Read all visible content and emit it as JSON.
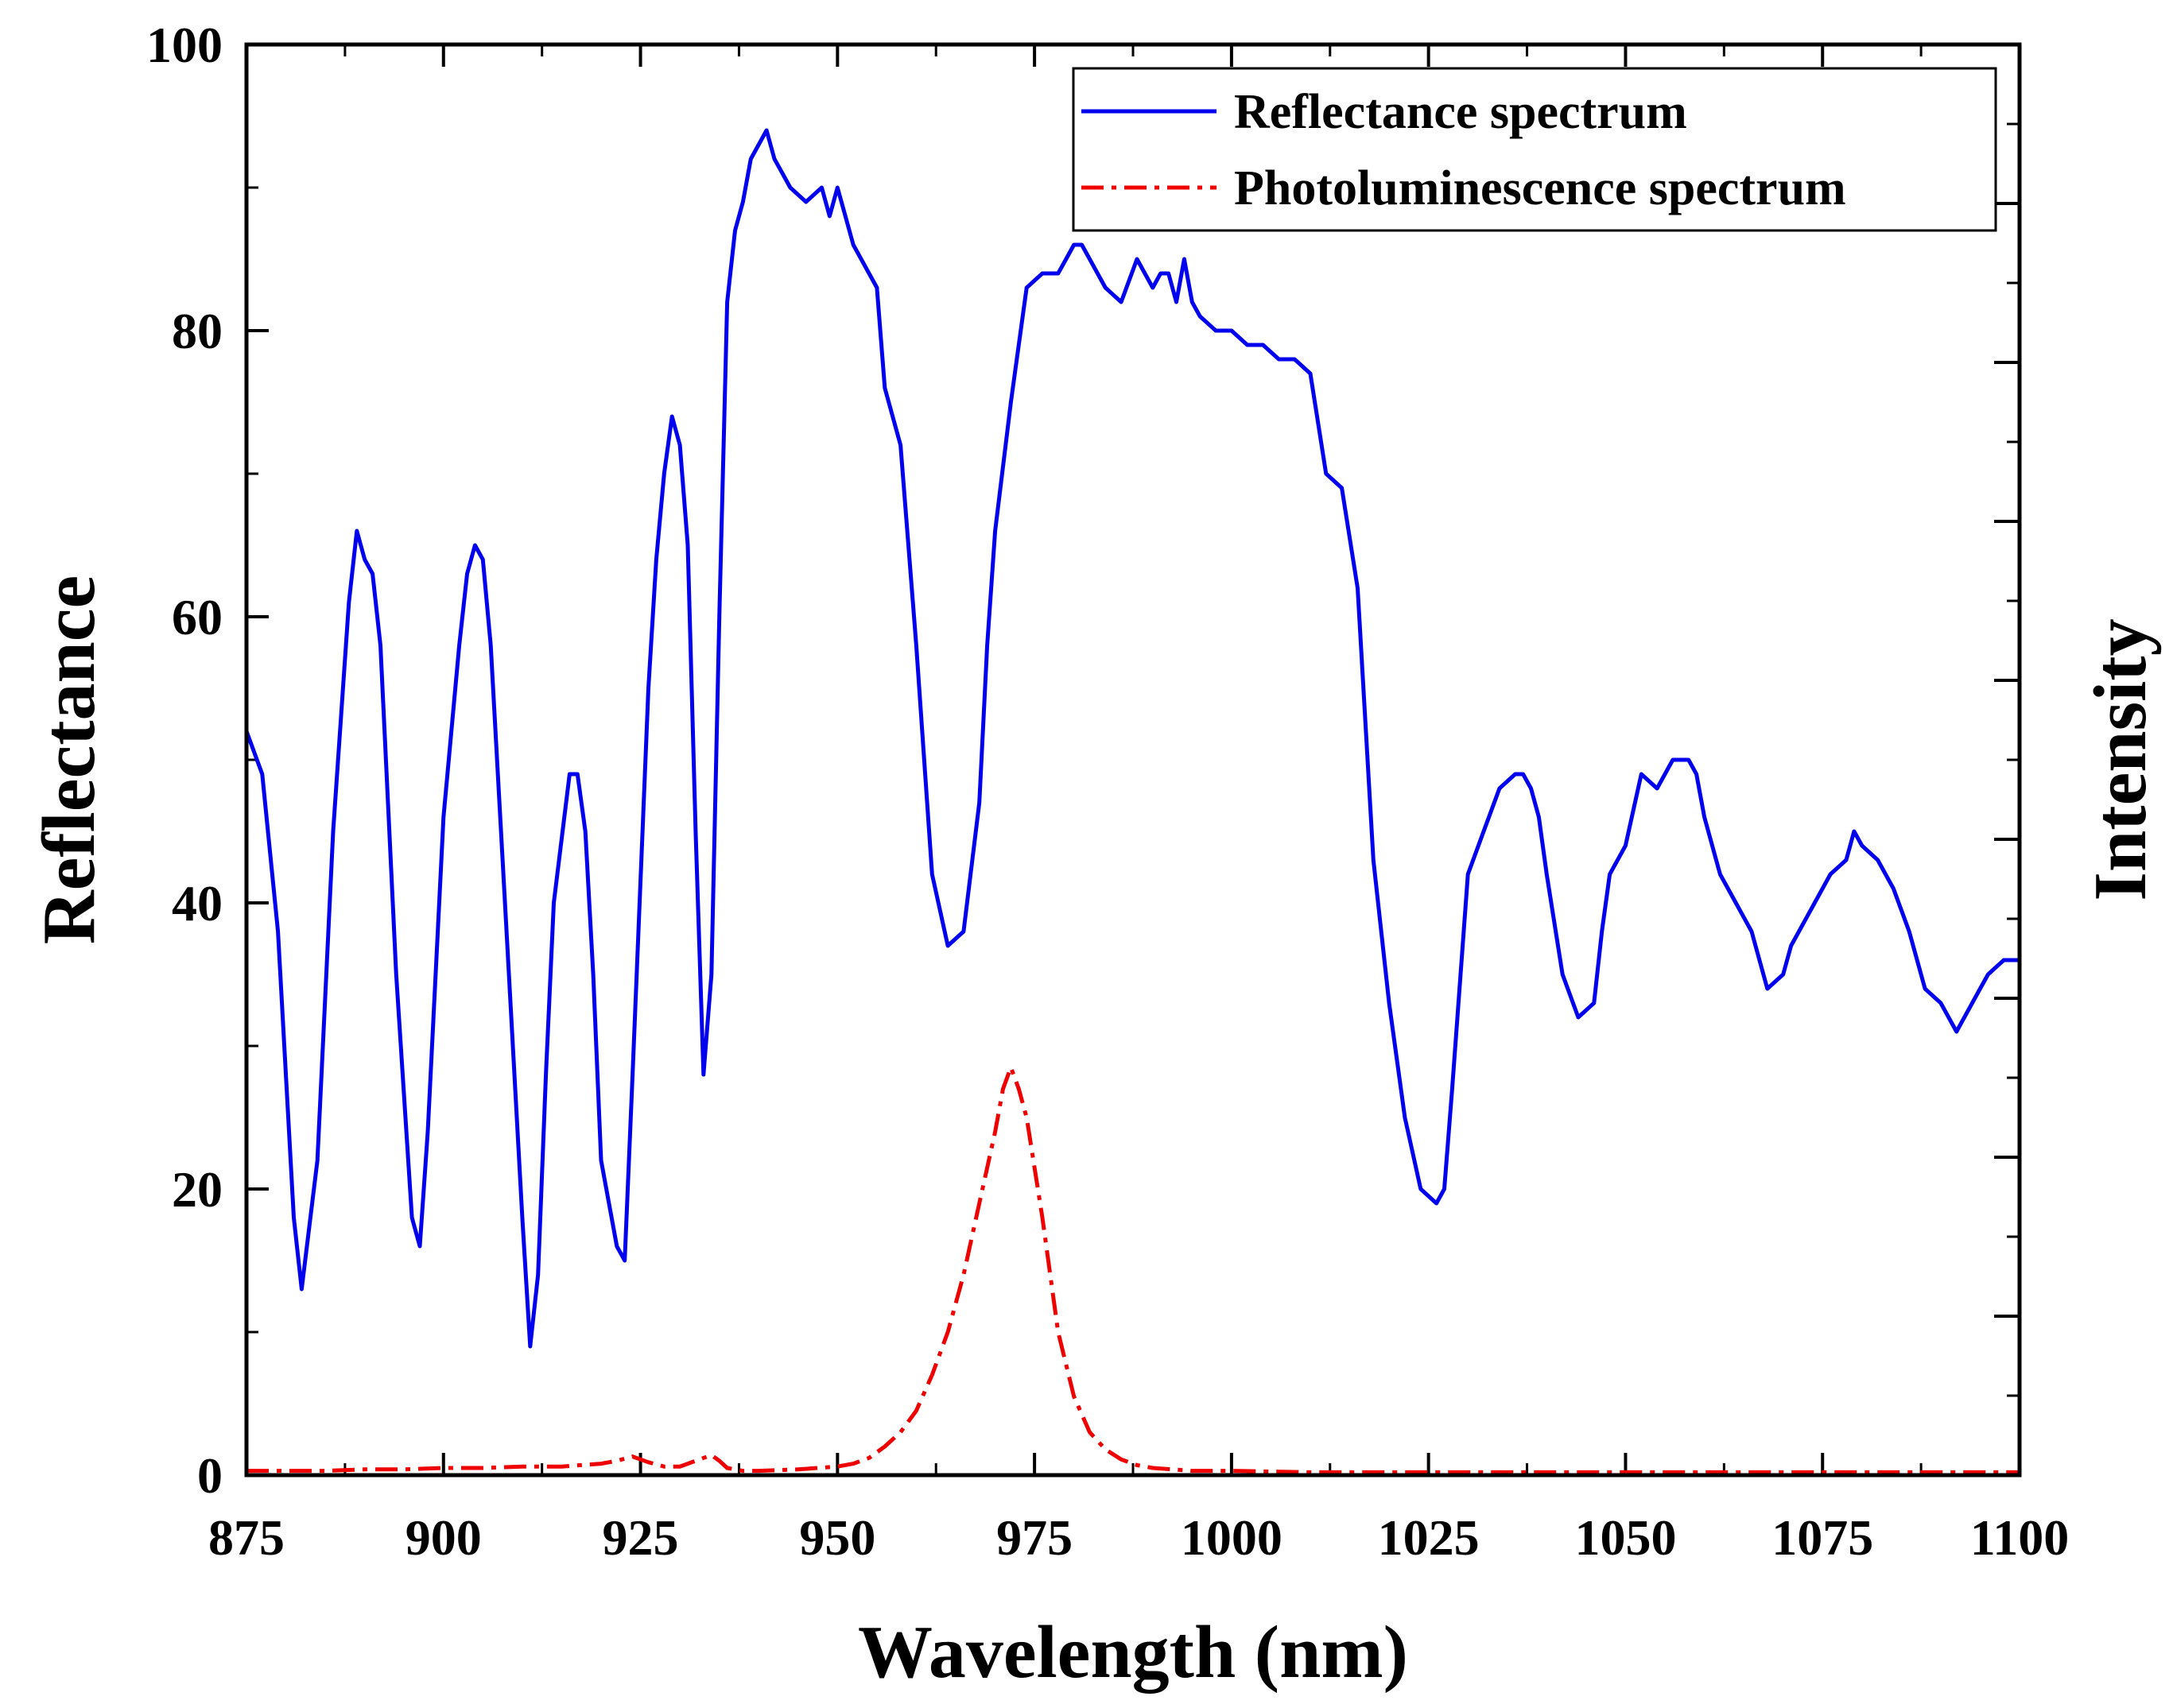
{
  "chart_data": {
    "type": "line",
    "title": "",
    "xlabel": "Wavelength (nm)",
    "ylabel": "Reflectance",
    "y2label": "Intensity",
    "xlim": [
      875,
      1100
    ],
    "ylim": [
      0,
      100
    ],
    "xticks": [
      875,
      900,
      925,
      950,
      975,
      1000,
      1025,
      1050,
      1075,
      1100
    ],
    "yticks": [
      0,
      20,
      40,
      60,
      80,
      100
    ],
    "legend_position": "top-right",
    "series": [
      {
        "name": "Reflectance spectrum",
        "color": "#0000ee",
        "style": "solid",
        "x": [
          875,
          877,
          879,
          881,
          882,
          884,
          886,
          888,
          889,
          890,
          891,
          892,
          894,
          896,
          897,
          898,
          900,
          902,
          903,
          904,
          905,
          906,
          908,
          910,
          911,
          912,
          913,
          914,
          916,
          917,
          918,
          919,
          920,
          922,
          923,
          924,
          926,
          927,
          928,
          929,
          930,
          931,
          932,
          933,
          934,
          935,
          936,
          937,
          938,
          939,
          940,
          941,
          942,
          943,
          944,
          946,
          948,
          949,
          950,
          952,
          954,
          955,
          956,
          958,
          960,
          962,
          964,
          966,
          968,
          969,
          970,
          972,
          974,
          976,
          978,
          979,
          980,
          981,
          982,
          983,
          984,
          986,
          988,
          990,
          991,
          992,
          993,
          994,
          995,
          996,
          998,
          1000,
          1002,
          1004,
          1006,
          1008,
          1010,
          1012,
          1014,
          1016,
          1018,
          1020,
          1022,
          1024,
          1026,
          1027,
          1028,
          1030,
          1032,
          1034,
          1036,
          1037,
          1038,
          1039,
          1040,
          1042,
          1044,
          1046,
          1047,
          1048,
          1050,
          1052,
          1054,
          1055,
          1056,
          1058,
          1059,
          1060,
          1062,
          1064,
          1066,
          1068,
          1070,
          1071,
          1072,
          1074,
          1076,
          1078,
          1079,
          1080,
          1082,
          1084,
          1086,
          1088,
          1090,
          1092,
          1094,
          1095,
          1096,
          1098,
          1100
        ],
        "values": [
          52,
          49,
          38,
          18,
          13,
          22,
          45,
          61,
          66,
          64,
          63,
          58,
          35,
          18,
          16,
          24,
          46,
          58,
          63,
          65,
          64,
          58,
          38,
          18,
          9,
          14,
          28,
          40,
          49,
          49,
          45,
          35,
          22,
          16,
          15,
          28,
          55,
          64,
          70,
          74,
          72,
          65,
          45,
          28,
          35,
          60,
          82,
          87,
          89,
          92,
          93,
          94,
          92,
          91,
          90,
          89,
          90,
          88,
          90,
          86,
          84,
          83,
          76,
          72,
          58,
          42,
          37,
          38,
          47,
          58,
          66,
          75,
          83,
          84,
          84,
          85,
          86,
          86,
          85,
          84,
          83,
          82,
          85,
          83,
          84,
          84,
          82,
          85,
          82,
          81,
          80,
          80,
          79,
          79,
          78,
          78,
          77,
          70,
          69,
          62,
          43,
          33,
          25,
          20,
          19,
          20,
          27,
          42,
          45,
          48,
          49,
          49,
          48,
          46,
          42,
          35,
          32,
          33,
          38,
          42,
          44,
          49,
          48,
          49,
          50,
          50,
          49,
          46,
          42,
          40,
          38,
          34,
          35,
          37,
          38,
          40,
          42,
          43,
          45,
          44,
          43,
          41,
          38,
          34,
          33,
          31,
          33,
          34,
          35,
          36,
          36
        ]
      },
      {
        "name": "Photoluminescence spectrum",
        "color": "#ee0000",
        "style": "dash-dot",
        "x": [
          875,
          880,
          885,
          890,
          895,
          900,
          905,
          910,
          915,
          920,
          922,
          924,
          926,
          928,
          930,
          932,
          934,
          935,
          936,
          938,
          940,
          945,
          950,
          952,
          954,
          956,
          958,
          960,
          962,
          964,
          966,
          968,
          970,
          971,
          972,
          973,
          974,
          976,
          978,
          980,
          982,
          984,
          986,
          988,
          990,
          995,
          1000,
          1010,
          1020,
          1030,
          1040,
          1050,
          1060,
          1070,
          1080,
          1090,
          1100
        ],
        "values": [
          0.3,
          0.3,
          0.3,
          0.4,
          0.4,
          0.5,
          0.5,
          0.6,
          0.6,
          0.8,
          1,
          1.3,
          0.9,
          0.6,
          0.6,
          1,
          1.4,
          1,
          0.5,
          0.3,
          0.3,
          0.4,
          0.6,
          0.8,
          1.2,
          2,
          3,
          4.5,
          7,
          10,
          14,
          19,
          24,
          27,
          28.5,
          27,
          25,
          18,
          10,
          5.5,
          3,
          1.8,
          1.1,
          0.7,
          0.5,
          0.3,
          0.3,
          0.2,
          0.2,
          0.2,
          0.2,
          0.2,
          0.2,
          0.2,
          0.2,
          0.2,
          0.2
        ]
      }
    ]
  }
}
